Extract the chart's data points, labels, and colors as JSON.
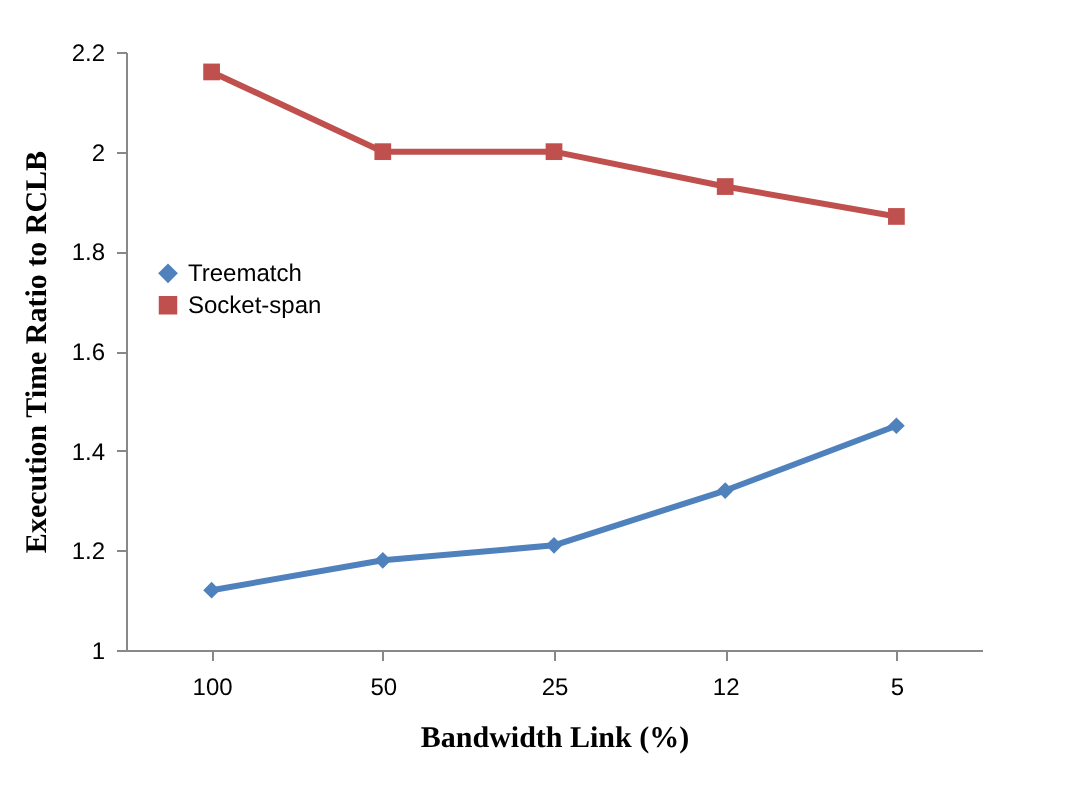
{
  "chart_data": {
    "type": "line",
    "xlabel": "Bandwidth Link (%)",
    "ylabel": "Execution Time Ratio to RCLB",
    "categories": [
      "100",
      "50",
      "25",
      "12",
      "5"
    ],
    "series": [
      {
        "name": "Treematch",
        "color": "#4f81bd",
        "marker": "diamond",
        "values": [
          1.12,
          1.18,
          1.21,
          1.32,
          1.45
        ]
      },
      {
        "name": "Socket-span",
        "color": "#c0504d",
        "marker": "square",
        "values": [
          2.16,
          2.0,
          2.0,
          1.93,
          1.87
        ]
      }
    ],
    "ylim": [
      1,
      2.2
    ],
    "yticks": [
      1,
      1.2,
      1.4,
      1.6,
      1.8,
      2,
      2.2
    ],
    "grid": false,
    "legend": "left",
    "line_style": "solid"
  }
}
